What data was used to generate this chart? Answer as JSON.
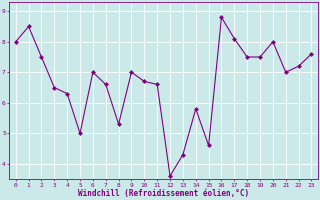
{
  "x": [
    0,
    1,
    2,
    3,
    4,
    5,
    6,
    7,
    8,
    9,
    10,
    11,
    12,
    13,
    14,
    15,
    16,
    17,
    18,
    19,
    20,
    21,
    22,
    23
  ],
  "y": [
    8.0,
    8.5,
    7.5,
    6.5,
    6.3,
    5.0,
    7.0,
    6.6,
    5.3,
    7.0,
    6.7,
    6.6,
    3.6,
    4.3,
    5.8,
    4.6,
    8.8,
    8.1,
    7.5,
    7.5,
    8.0,
    7.0,
    7.2,
    7.6
  ],
  "line_color": "#800080",
  "marker": "D",
  "marker_size": 2.0,
  "bg_color": "#cce9e9",
  "grid_color": "#ffffff",
  "xlabel": "Windchill (Refroidissement éolien,°C)",
  "xlabel_color": "#800080",
  "tick_color": "#800080",
  "ylim": [
    3.5,
    9.3
  ],
  "yticks": [
    4,
    5,
    6,
    7,
    8,
    9
  ],
  "xlim": [
    -0.5,
    23.5
  ],
  "xticks": [
    0,
    1,
    2,
    3,
    4,
    5,
    6,
    7,
    8,
    9,
    10,
    11,
    12,
    13,
    14,
    15,
    16,
    17,
    18,
    19,
    20,
    21,
    22,
    23
  ],
  "tick_fontsize": 4.5,
  "xlabel_fontsize": 5.5
}
